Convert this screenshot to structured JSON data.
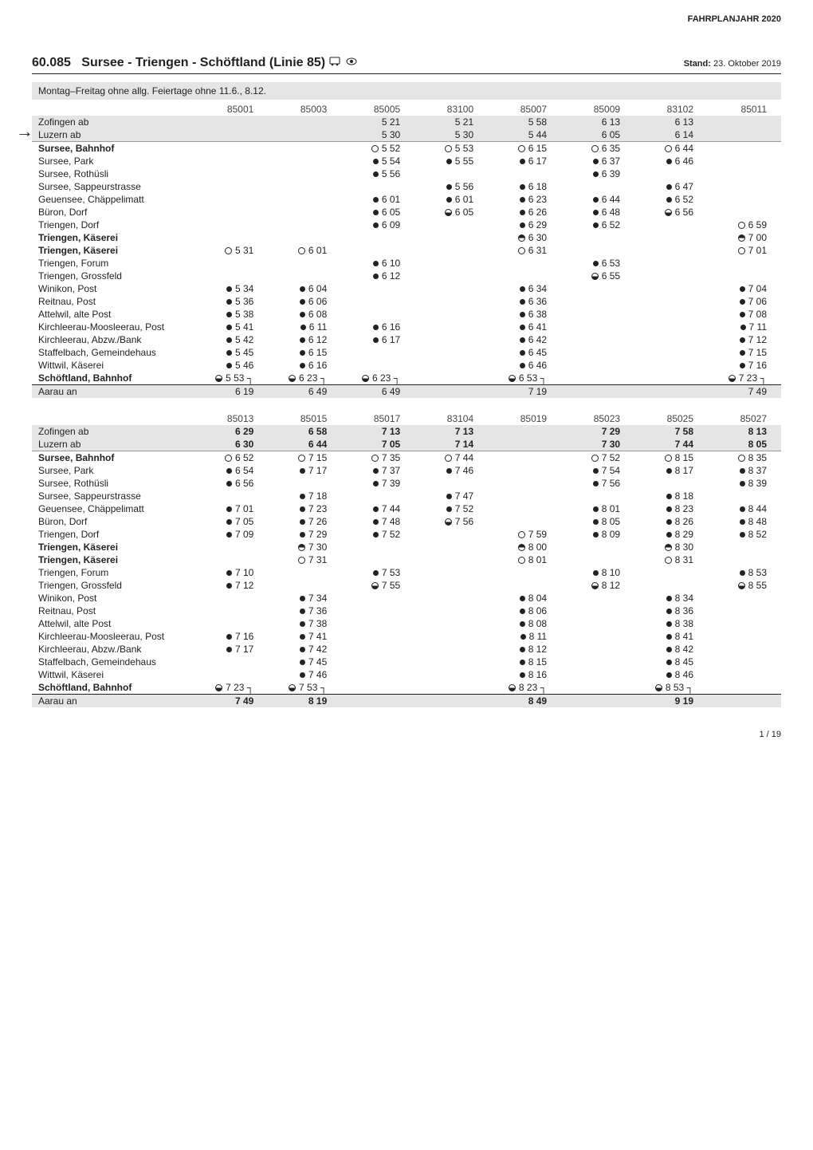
{
  "meta": {
    "fahrplanjahr": "FAHRPLANJAHR 2020",
    "line_number": "60.085",
    "line_name": "Sursee - Triengen - Schöftland (Linie 85)",
    "stand": "Stand: 23. Oktober 2019",
    "day_note": "Montag–Freitag ohne allg. Feiertage ohne 11.6., 8.12.",
    "page": "1 / 19"
  },
  "block1": {
    "courses": [
      "85001",
      "85003",
      "85005",
      "83100",
      "85007",
      "85009",
      "83102",
      "85011"
    ],
    "header_rows": [
      {
        "label": "Zofingen ab",
        "vals": [
          "",
          "",
          "5 21",
          "5 21",
          "5 58",
          "6 13",
          "6 13",
          ""
        ],
        "shade": true
      },
      {
        "label": "Luzern ab",
        "vals": [
          "",
          "",
          "5 30",
          "5 30",
          "5 44",
          "6 05",
          "6 14",
          ""
        ],
        "shade": true
      }
    ],
    "stops": [
      {
        "label": "Sursee, Bahnhof",
        "bold": true,
        "vals": [
          "",
          "",
          "5 52",
          "5 53",
          "6 15",
          "6 35",
          "6 44",
          ""
        ],
        "sym": [
          "",
          "",
          "o",
          "o",
          "o",
          "o",
          "o",
          ""
        ]
      },
      {
        "label": "Sursee, Park",
        "vals": [
          "",
          "",
          "5 54",
          "5 55",
          "6 17",
          "6 37",
          "6 46",
          ""
        ],
        "sym": [
          "",
          "",
          "s",
          "s",
          "s",
          "s",
          "s",
          ""
        ]
      },
      {
        "label": "Sursee, Rothüsli",
        "vals": [
          "",
          "",
          "5 56",
          "",
          "",
          "6 39",
          "",
          ""
        ],
        "sym": [
          "",
          "",
          "s",
          "",
          "",
          "s",
          "",
          ""
        ]
      },
      {
        "label": "Sursee, Sappeurstrasse",
        "vals": [
          "",
          "",
          "",
          "5 56",
          "6 18",
          "",
          "6 47",
          ""
        ],
        "sym": [
          "",
          "",
          "",
          "s",
          "s",
          "",
          "s",
          ""
        ]
      },
      {
        "label": "Geuensee, Chäppelimatt",
        "vals": [
          "",
          "",
          "6 01",
          "6 01",
          "6 23",
          "6 44",
          "6 52",
          ""
        ],
        "sym": [
          "",
          "",
          "s",
          "s",
          "s",
          "s",
          "s",
          ""
        ]
      },
      {
        "label": "Büron, Dorf",
        "vals": [
          "",
          "",
          "6 05",
          "6 05",
          "6 26",
          "6 48",
          "6 56",
          ""
        ],
        "sym": [
          "",
          "",
          "s",
          "hb",
          "s",
          "s",
          "hb",
          ""
        ]
      },
      {
        "label": "Triengen, Dorf",
        "vals": [
          "",
          "",
          "6 09",
          "",
          "6 29",
          "6 52",
          "",
          "6 59"
        ],
        "sym": [
          "",
          "",
          "s",
          "",
          "s",
          "s",
          "",
          "o"
        ]
      },
      {
        "label": "Triengen, Käserei",
        "bold": true,
        "vals": [
          "",
          "",
          "",
          "",
          "6 30",
          "",
          "",
          "7 00"
        ],
        "sym": [
          "",
          "",
          "",
          "",
          "ht",
          "",
          "",
          "ht"
        ]
      },
      {
        "label": "Triengen, Käserei",
        "bold": true,
        "vals": [
          "5 31",
          "6 01",
          "",
          "",
          "6 31",
          "",
          "",
          "7 01"
        ],
        "sym": [
          "o",
          "o",
          "",
          "",
          "o",
          "",
          "",
          "o"
        ]
      },
      {
        "label": "Triengen, Forum",
        "vals": [
          "",
          "",
          "6 10",
          "",
          "",
          "6 53",
          "",
          ""
        ],
        "sym": [
          "",
          "",
          "s",
          "",
          "",
          "s",
          "",
          ""
        ]
      },
      {
        "label": "Triengen, Grossfeld",
        "vals": [
          "",
          "",
          "6 12",
          "",
          "",
          "6 55",
          "",
          ""
        ],
        "sym": [
          "",
          "",
          "s",
          "",
          "",
          "hb",
          "",
          ""
        ]
      },
      {
        "label": "Winikon, Post",
        "vals": [
          "5 34",
          "6 04",
          "",
          "",
          "6 34",
          "",
          "",
          "7 04"
        ],
        "sym": [
          "s",
          "s",
          "",
          "",
          "s",
          "",
          "",
          "s"
        ]
      },
      {
        "label": "Reitnau, Post",
        "vals": [
          "5 36",
          "6 06",
          "",
          "",
          "6 36",
          "",
          "",
          "7 06"
        ],
        "sym": [
          "s",
          "s",
          "",
          "",
          "s",
          "",
          "",
          "s"
        ]
      },
      {
        "label": "Attelwil, alte Post",
        "vals": [
          "5 38",
          "6 08",
          "",
          "",
          "6 38",
          "",
          "",
          "7 08"
        ],
        "sym": [
          "s",
          "s",
          "",
          "",
          "s",
          "",
          "",
          "s"
        ]
      },
      {
        "label": "Kirchleerau-Moosleerau, Post",
        "vals": [
          "5 41",
          "6 11",
          "6 16",
          "",
          "6 41",
          "",
          "",
          "7 11"
        ],
        "sym": [
          "s",
          "s",
          "s",
          "",
          "s",
          "",
          "",
          "s"
        ]
      },
      {
        "label": "Kirchleerau, Abzw./Bank",
        "vals": [
          "5 42",
          "6 12",
          "6 17",
          "",
          "6 42",
          "",
          "",
          "7 12"
        ],
        "sym": [
          "s",
          "s",
          "s",
          "",
          "s",
          "",
          "",
          "s"
        ]
      },
      {
        "label": "Staffelbach, Gemeindehaus",
        "vals": [
          "5 45",
          "6 15",
          "",
          "",
          "6 45",
          "",
          "",
          "7 15"
        ],
        "sym": [
          "s",
          "s",
          "",
          "",
          "s",
          "",
          "",
          "s"
        ]
      },
      {
        "label": "Wittwil, Käserei",
        "vals": [
          "5 46",
          "6 16",
          "",
          "",
          "6 46",
          "",
          "",
          "7 16"
        ],
        "sym": [
          "s",
          "s",
          "",
          "",
          "s",
          "",
          "",
          "s"
        ]
      },
      {
        "label": "Schöftland, Bahnhof",
        "bold": true,
        "vals": [
          "5 53 ┐",
          "6 23 ┐",
          "6 23 ┐",
          "",
          "6 53 ┐",
          "",
          "",
          "7 23 ┐"
        ],
        "sym": [
          "hb",
          "hb",
          "hb",
          "",
          "hb",
          "",
          "",
          "hb"
        ]
      }
    ],
    "footer": {
      "label": "Aarau an",
      "vals": [
        "6 19",
        "6 49",
        "6 49",
        "",
        "7 19",
        "",
        "",
        "7 49"
      ],
      "shade": true
    }
  },
  "block2": {
    "courses": [
      "85013",
      "85015",
      "85017",
      "83104",
      "85019",
      "85023",
      "85025",
      "85027"
    ],
    "header_rows": [
      {
        "label": "Zofingen ab",
        "vals": [
          "6 29",
          "6 58",
          "7 13",
          "7 13",
          "",
          "7 29",
          "7 58",
          "8 13"
        ],
        "shade": true,
        "bold": true
      },
      {
        "label": "Luzern ab",
        "vals": [
          "6 30",
          "6 44",
          "7 05",
          "7 14",
          "",
          "7 30",
          "7 44",
          "8 05"
        ],
        "shade": true,
        "bold": true
      }
    ],
    "stops": [
      {
        "label": "Sursee, Bahnhof",
        "bold": true,
        "vals": [
          "6 52",
          "7 15",
          "7 35",
          "7 44",
          "",
          "7 52",
          "8 15",
          "8 35"
        ],
        "sym": [
          "o",
          "o",
          "o",
          "o",
          "",
          "o",
          "o",
          "o"
        ]
      },
      {
        "label": "Sursee, Park",
        "vals": [
          "6 54",
          "7 17",
          "7 37",
          "7 46",
          "",
          "7 54",
          "8 17",
          "8 37"
        ],
        "sym": [
          "s",
          "s",
          "s",
          "s",
          "",
          "s",
          "s",
          "s"
        ]
      },
      {
        "label": "Sursee, Rothüsli",
        "vals": [
          "6 56",
          "",
          "7 39",
          "",
          "",
          "7 56",
          "",
          "8 39"
        ],
        "sym": [
          "s",
          "",
          "s",
          "",
          "",
          "s",
          "",
          "s"
        ]
      },
      {
        "label": "Sursee, Sappeurstrasse",
        "vals": [
          "",
          "7 18",
          "",
          "7 47",
          "",
          "",
          "8 18",
          ""
        ],
        "sym": [
          "",
          "s",
          "",
          "s",
          "",
          "",
          "s",
          ""
        ]
      },
      {
        "label": "Geuensee, Chäppelimatt",
        "vals": [
          "7 01",
          "7 23",
          "7 44",
          "7 52",
          "",
          "8 01",
          "8 23",
          "8 44"
        ],
        "sym": [
          "s",
          "s",
          "s",
          "s",
          "",
          "s",
          "s",
          "s"
        ]
      },
      {
        "label": "Büron, Dorf",
        "vals": [
          "7 05",
          "7 26",
          "7 48",
          "7 56",
          "",
          "8 05",
          "8 26",
          "8 48"
        ],
        "sym": [
          "s",
          "s",
          "s",
          "hb",
          "",
          "s",
          "s",
          "s"
        ]
      },
      {
        "label": "Triengen, Dorf",
        "vals": [
          "7 09",
          "7 29",
          "7 52",
          "",
          "7 59",
          "8 09",
          "8 29",
          "8 52"
        ],
        "sym": [
          "s",
          "s",
          "s",
          "",
          "o",
          "s",
          "s",
          "s"
        ]
      },
      {
        "label": "Triengen, Käserei",
        "bold": true,
        "vals": [
          "",
          "7 30",
          "",
          "",
          "8 00",
          "",
          "8 30",
          ""
        ],
        "sym": [
          "",
          "ht",
          "",
          "",
          "ht",
          "",
          "ht",
          ""
        ]
      },
      {
        "label": "Triengen, Käserei",
        "bold": true,
        "vals": [
          "",
          "7 31",
          "",
          "",
          "8 01",
          "",
          "8 31",
          ""
        ],
        "sym": [
          "",
          "o",
          "",
          "",
          "o",
          "",
          "o",
          ""
        ]
      },
      {
        "label": "Triengen, Forum",
        "vals": [
          "7 10",
          "",
          "7 53",
          "",
          "",
          "8 10",
          "",
          "8 53"
        ],
        "sym": [
          "s",
          "",
          "s",
          "",
          "",
          "s",
          "",
          "s"
        ]
      },
      {
        "label": "Triengen, Grossfeld",
        "vals": [
          "7 12",
          "",
          "7 55",
          "",
          "",
          "8 12",
          "",
          "8 55"
        ],
        "sym": [
          "s",
          "",
          "hb",
          "",
          "",
          "hb",
          "",
          "hb"
        ]
      },
      {
        "label": "Winikon, Post",
        "vals": [
          "",
          "7 34",
          "",
          "",
          "8 04",
          "",
          "8 34",
          ""
        ],
        "sym": [
          "",
          "s",
          "",
          "",
          "s",
          "",
          "s",
          ""
        ]
      },
      {
        "label": "Reitnau, Post",
        "vals": [
          "",
          "7 36",
          "",
          "",
          "8 06",
          "",
          "8 36",
          ""
        ],
        "sym": [
          "",
          "s",
          "",
          "",
          "s",
          "",
          "s",
          ""
        ]
      },
      {
        "label": "Attelwil, alte Post",
        "vals": [
          "",
          "7 38",
          "",
          "",
          "8 08",
          "",
          "8 38",
          ""
        ],
        "sym": [
          "",
          "s",
          "",
          "",
          "s",
          "",
          "s",
          ""
        ]
      },
      {
        "label": "Kirchleerau-Moosleerau, Post",
        "vals": [
          "7 16",
          "7 41",
          "",
          "",
          "8 11",
          "",
          "8 41",
          ""
        ],
        "sym": [
          "s",
          "s",
          "",
          "",
          "s",
          "",
          "s",
          ""
        ]
      },
      {
        "label": "Kirchleerau, Abzw./Bank",
        "vals": [
          "7 17",
          "7 42",
          "",
          "",
          "8 12",
          "",
          "8 42",
          ""
        ],
        "sym": [
          "s",
          "s",
          "",
          "",
          "s",
          "",
          "s",
          ""
        ]
      },
      {
        "label": "Staffelbach, Gemeindehaus",
        "vals": [
          "",
          "7 45",
          "",
          "",
          "8 15",
          "",
          "8 45",
          ""
        ],
        "sym": [
          "",
          "s",
          "",
          "",
          "s",
          "",
          "s",
          ""
        ]
      },
      {
        "label": "Wittwil, Käserei",
        "vals": [
          "",
          "7 46",
          "",
          "",
          "8 16",
          "",
          "8 46",
          ""
        ],
        "sym": [
          "",
          "s",
          "",
          "",
          "s",
          "",
          "s",
          ""
        ]
      },
      {
        "label": "Schöftland, Bahnhof",
        "bold": true,
        "vals": [
          "7 23 ┐",
          "7 53 ┐",
          "",
          "",
          "8 23 ┐",
          "",
          "8 53 ┐",
          ""
        ],
        "sym": [
          "hb",
          "hb",
          "",
          "",
          "hb",
          "",
          "hb",
          ""
        ]
      }
    ],
    "footer": {
      "label": "Aarau an",
      "vals": [
        "7 49",
        "8 19",
        "",
        "",
        "8 49",
        "",
        "9 19",
        ""
      ],
      "shade": true,
      "bold": true
    }
  }
}
